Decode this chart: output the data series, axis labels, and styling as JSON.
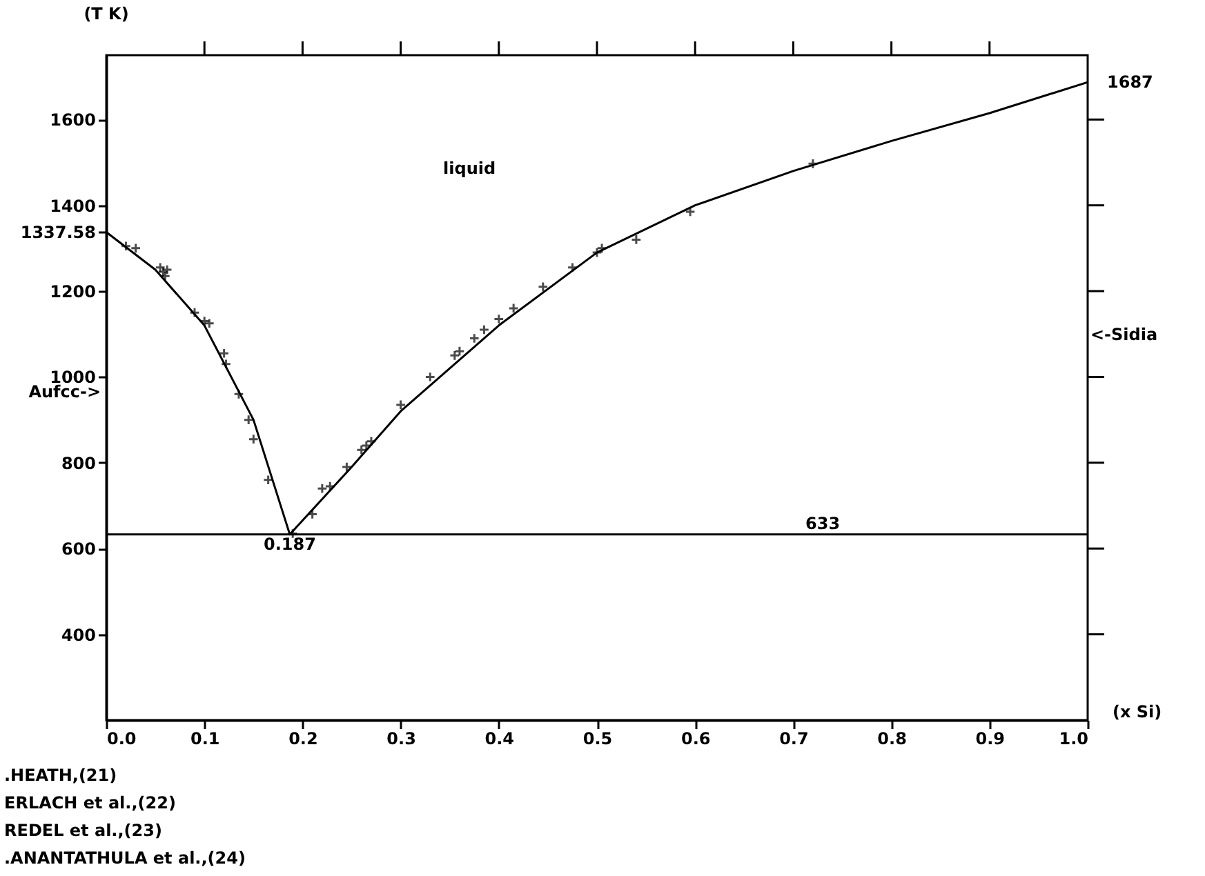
{
  "chart_data": {
    "type": "line",
    "xlabel": "(x Si)",
    "ylabel": "(T K)",
    "xlim": [
      0,
      1
    ],
    "ylim": [
      200,
      1750
    ],
    "xticks": [
      {
        "value": 0,
        "label": "0.0"
      },
      {
        "value": 0.1,
        "label": "0.1"
      },
      {
        "value": 0.2,
        "label": "0.2"
      },
      {
        "value": 0.3,
        "label": "0.3"
      },
      {
        "value": 0.4,
        "label": "0.4"
      },
      {
        "value": 0.5,
        "label": "0.5"
      },
      {
        "value": 0.6,
        "label": "0.6"
      },
      {
        "value": 0.7,
        "label": "0.7"
      },
      {
        "value": 0.8,
        "label": "0.8"
      },
      {
        "value": 0.9,
        "label": "0.9"
      },
      {
        "value": 1,
        "label": "1.0"
      }
    ],
    "yticks": [
      400,
      600,
      800,
      1000,
      1200,
      1337.58,
      1400,
      1600
    ],
    "grid": false,
    "series": [
      {
        "color": "#000000",
        "line_style": "solid",
        "marker": "none",
        "x": [
          0,
          0.05,
          0.1,
          0.15,
          0.187,
          0.25,
          0.3,
          0.4,
          0.5,
          0.6,
          0.7,
          0.8,
          0.9,
          1.0
        ],
        "values": [
          1337.58,
          1250,
          1120,
          900,
          633,
          790,
          920,
          1120,
          1290,
          1400,
          1480,
          1550,
          1615,
          1687
        ]
      },
      {
        "type": "scatter",
        "color": "#000000",
        "marker": "cross",
        "x": [
          0.02,
          0.03,
          0.055,
          0.058,
          0.06,
          0.062,
          0.09,
          0.1,
          0.105,
          0.12,
          0.122,
          0.135,
          0.145,
          0.15,
          0.165,
          0.19,
          0.21,
          0.22,
          0.228,
          0.245,
          0.26,
          0.265,
          0.27,
          0.3,
          0.33,
          0.355,
          0.36,
          0.375,
          0.385,
          0.4,
          0.415,
          0.445,
          0.475,
          0.5,
          0.505,
          0.54,
          0.595,
          0.72
        ],
        "values": [
          1305,
          1300,
          1255,
          1245,
          1235,
          1250,
          1150,
          1130,
          1125,
          1055,
          1030,
          960,
          900,
          855,
          760,
          635,
          680,
          740,
          745,
          790,
          830,
          840,
          850,
          935,
          1000,
          1050,
          1060,
          1090,
          1110,
          1135,
          1160,
          1210,
          1255,
          1290,
          1300,
          1320,
          1385,
          1497
        ]
      }
    ],
    "ref_lines": [
      {
        "axis": "y",
        "value": 633,
        "label": "633",
        "color": "#000000"
      }
    ],
    "annotations": [
      {
        "text": "1687",
        "x": 1,
        "y": 1687
      },
      {
        "text": "0.187",
        "x": 0.187,
        "y": 633
      },
      "liquid",
      "Aufcc->",
      "<-Sidia",
      ".HEATH,(21)",
      "ERLACH et al.,(22)",
      "REDEL et al.,(23)",
      ".ANANTATHULA et al.,(24)"
    ]
  }
}
